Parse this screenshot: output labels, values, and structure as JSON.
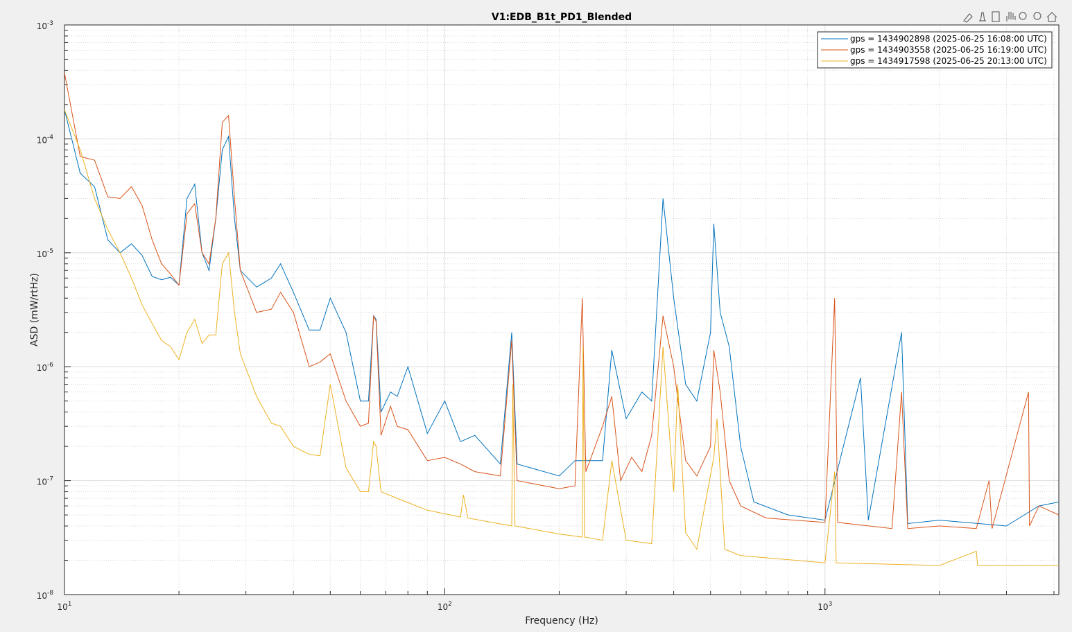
{
  "chart_data": {
    "type": "line",
    "title": "V1:EDB_B1t_PD1_Blended",
    "x_label": "Frequency (Hz)",
    "y_label": "ASD (mW/rtHz)",
    "log_x": true,
    "log_y": true,
    "grid": true,
    "minor_grid": true,
    "legend": "upper right",
    "xlim": [
      10,
      4120
    ],
    "ylim": [
      1e-08,
      0.001
    ],
    "xticks": [
      {
        "value": 10,
        "label": "10",
        "exponent": "1"
      },
      {
        "value": 100,
        "label": "10",
        "exponent": "2"
      },
      {
        "value": 1000,
        "label": "10",
        "exponent": "3"
      }
    ],
    "yticks": [
      {
        "value": 1e-08,
        "label": "10",
        "exponent": "-8"
      },
      {
        "value": 1e-07,
        "label": "10",
        "exponent": "-7"
      },
      {
        "value": 1e-06,
        "label": "10",
        "exponent": "-6"
      },
      {
        "value": 1e-05,
        "label": "10",
        "exponent": "-5"
      },
      {
        "value": 0.0001,
        "label": "10",
        "exponent": "-4"
      },
      {
        "value": 0.001,
        "label": "10",
        "exponent": "-3"
      }
    ],
    "series": [
      {
        "name": "gps = 1434902898 (2025-06-25 16:08:00 UTC)",
        "color": "#0072BD",
        "x": [
          10,
          11,
          12,
          13,
          14,
          15,
          16,
          17,
          18,
          19,
          20,
          21,
          22,
          23,
          24,
          25,
          26,
          27,
          28,
          29,
          32,
          35,
          37,
          40,
          44,
          47,
          50,
          55,
          60,
          63,
          65,
          66,
          68,
          72,
          75,
          80,
          90,
          100,
          110,
          120,
          140,
          150,
          155,
          200,
          220,
          230,
          260,
          275,
          300,
          330,
          350,
          375,
          400,
          430,
          460,
          500,
          510,
          530,
          560,
          600,
          650,
          800,
          1000,
          1240,
          1300,
          1590,
          1650,
          2000,
          3000,
          3650,
          4120
        ],
        "values": [
          0.00018,
          5e-05,
          3.8e-05,
          1.3e-05,
          1e-05,
          1.2e-05,
          9.5e-06,
          6.2e-06,
          5.8e-06,
          6.1e-06,
          5.2e-06,
          3e-05,
          4e-05,
          1e-05,
          7e-06,
          2e-05,
          8e-05,
          0.000105,
          2e-05,
          7e-06,
          5e-06,
          6e-06,
          8e-06,
          4.5e-06,
          2.1e-06,
          2.1e-06,
          4e-06,
          2e-06,
          5e-07,
          5e-07,
          2.8e-06,
          2.6e-06,
          4e-07,
          6e-07,
          5.5e-07,
          1e-06,
          2.6e-07,
          5e-07,
          2.2e-07,
          2.5e-07,
          1.4e-07,
          2e-06,
          1.4e-07,
          1.1e-07,
          1.5e-07,
          1.5e-07,
          1.5e-07,
          1.4e-06,
          3.5e-07,
          6e-07,
          5e-07,
          3e-05,
          4e-06,
          7e-07,
          5e-07,
          2e-06,
          1.8e-05,
          3e-06,
          1.5e-06,
          2e-07,
          6.5e-08,
          5e-08,
          4.5e-08,
          8e-07,
          4.5e-08,
          2e-06,
          4.2e-08,
          4.5e-08,
          4e-08,
          6e-08,
          6.5e-08
        ]
      },
      {
        "name": "gps = 1434903558 (2025-06-25 16:19:00 UTC)",
        "color": "#D95319",
        "x": [
          10,
          11,
          12,
          13,
          14,
          15,
          16,
          17,
          18,
          19,
          20,
          21,
          22,
          23,
          24,
          25,
          26,
          27,
          28,
          29,
          32,
          35,
          37,
          40,
          44,
          47,
          50,
          55,
          60,
          63,
          65,
          66,
          68,
          72,
          75,
          80,
          90,
          100,
          110,
          120,
          140,
          150,
          155,
          200,
          220,
          230,
          235,
          260,
          275,
          290,
          310,
          330,
          350,
          375,
          400,
          430,
          460,
          500,
          510,
          530,
          560,
          600,
          700,
          1000,
          1060,
          1080,
          1500,
          1590,
          1650,
          2000,
          2500,
          2700,
          2750,
          3430,
          3450,
          3650,
          4120
        ],
        "values": [
          0.00038,
          7e-05,
          6.5e-05,
          3.1e-05,
          3e-05,
          3.8e-05,
          2.6e-05,
          1.3e-05,
          8e-06,
          6.5e-06,
          5.2e-06,
          2.2e-05,
          2.7e-05,
          1e-05,
          8e-06,
          2e-05,
          0.00014,
          0.00016,
          3e-05,
          7e-06,
          3e-06,
          3.2e-06,
          4.5e-06,
          3e-06,
          1e-06,
          1.1e-06,
          1.3e-06,
          5e-07,
          3e-07,
          3.2e-07,
          2.8e-06,
          2.5e-06,
          2.5e-07,
          4.5e-07,
          3e-07,
          2.8e-07,
          1.5e-07,
          1.6e-07,
          1.4e-07,
          1.2e-07,
          1.1e-07,
          1.7e-06,
          1e-07,
          8.5e-08,
          9e-08,
          4e-06,
          1.2e-07,
          3e-07,
          5.5e-07,
          1e-07,
          1.6e-07,
          1.2e-07,
          2.5e-07,
          2.8e-06,
          1e-06,
          1.5e-07,
          1.1e-07,
          2e-07,
          1.4e-06,
          6e-07,
          1e-07,
          6e-08,
          4.7e-08,
          4.3e-08,
          4e-06,
          4.3e-08,
          3.8e-08,
          6e-07,
          3.8e-08,
          4e-08,
          3.8e-08,
          1e-07,
          3.8e-08,
          6e-07,
          4e-08,
          6e-08,
          5e-08
        ]
      },
      {
        "name": "gps = 1434917598 (2025-06-25 20:13:00 UTC)",
        "color": "#EDB120",
        "x": [
          10,
          11,
          12,
          13,
          14,
          15,
          16,
          17,
          18,
          19,
          20,
          21,
          22,
          23,
          24,
          25,
          26,
          27,
          28,
          29,
          32,
          35,
          37,
          40,
          44,
          47,
          50,
          55,
          60,
          63,
          65,
          66,
          68,
          75,
          90,
          110,
          112,
          115,
          150,
          151,
          153,
          200,
          230,
          231,
          233,
          260,
          275,
          300,
          350,
          375,
          400,
          410,
          430,
          460,
          510,
          520,
          545,
          600,
          1000,
          1060,
          1070,
          2000,
          2500,
          2520,
          4120
        ],
        "values": [
          0.00018,
          8e-05,
          3e-05,
          1.6e-05,
          1e-05,
          6e-06,
          3.5e-06,
          2.4e-06,
          1.7e-06,
          1.5e-06,
          1.15e-06,
          2e-06,
          2.6e-06,
          1.6e-06,
          1.9e-06,
          1.9e-06,
          8e-06,
          1e-05,
          3e-06,
          1.3e-06,
          5.5e-07,
          3.2e-07,
          3e-07,
          2e-07,
          1.7e-07,
          1.65e-07,
          7e-07,
          1.3e-07,
          8e-08,
          8e-08,
          2.2e-07,
          2e-07,
          8e-08,
          7e-08,
          5.5e-08,
          4.8e-08,
          7.5e-08,
          4.7e-08,
          4e-08,
          7e-07,
          4e-08,
          3.4e-08,
          3.2e-08,
          1.5e-06,
          3.2e-08,
          3e-08,
          1.5e-07,
          3e-08,
          2.8e-08,
          1.5e-06,
          8e-08,
          7e-07,
          3.5e-08,
          2.5e-08,
          1.6e-07,
          3.5e-07,
          2.5e-08,
          2.2e-08,
          1.9e-08,
          1.2e-07,
          1.9e-08,
          1.8e-08,
          2.4e-08,
          1.8e-08,
          1.8e-08
        ]
      }
    ]
  }
}
